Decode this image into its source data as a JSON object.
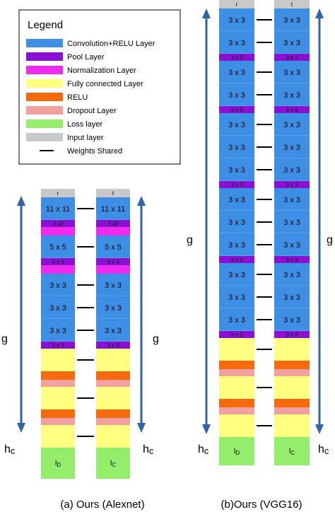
{
  "legend": {
    "title": "Legend",
    "items": [
      {
        "label": "Convolution+RELU Layer",
        "color": "#3d8fe6",
        "kind": "swatch"
      },
      {
        "label": "Pool Layer",
        "color": "#8a10d6",
        "kind": "swatch"
      },
      {
        "label": "Normalization Layer",
        "color": "#ef2bef",
        "kind": "swatch"
      },
      {
        "label": "Fully connected Layer",
        "color": "#ffff80",
        "kind": "swatch"
      },
      {
        "label": "RELU",
        "color": "#f46a0c",
        "kind": "swatch"
      },
      {
        "label": "Dropout Layer",
        "color": "#f2a0a0",
        "kind": "swatch"
      },
      {
        "label": "Loss layer",
        "color": "#94ee6c",
        "kind": "swatch"
      },
      {
        "label": "Input layer",
        "color": "#c8c8c8",
        "kind": "swatch"
      },
      {
        "label": "Weights Shared",
        "color": "#000000",
        "kind": "line"
      }
    ]
  },
  "colors": {
    "conv": "#3d8fe6",
    "pool": "#8a10d6",
    "norm": "#ef2bef",
    "fc": "#ffff80",
    "relu": "#f46a0c",
    "drop": "#f2a0a0",
    "loss": "#94ee6c",
    "input": "#c8c8c8",
    "arrow": "#3064a8",
    "seam": "#5d9fe8"
  },
  "alexnet": {
    "caption": "(a) Ours (Alexnet)",
    "left_header": "r",
    "right_header": "t",
    "left_loss": "lD",
    "right_loss": "lC",
    "g_label": "g",
    "hc_label": "hc",
    "layers": [
      {
        "type": "conv",
        "label": "11 x 11"
      },
      {
        "type": "pool",
        "label": "3 x3"
      },
      {
        "type": "norm",
        "label": ""
      },
      {
        "type": "conv",
        "label": "5 x 5"
      },
      {
        "type": "pool",
        "label": "3 x 3"
      },
      {
        "type": "norm",
        "label": ""
      },
      {
        "type": "conv",
        "label": "3 x 3"
      },
      {
        "type": "conv",
        "label": "3 x 3"
      },
      {
        "type": "conv",
        "label": "3 x 3"
      },
      {
        "type": "pool",
        "label": "3 x 3"
      },
      {
        "type": "fc",
        "label": ""
      },
      {
        "type": "relu",
        "label": ""
      },
      {
        "type": "drop",
        "label": ""
      },
      {
        "type": "fc",
        "label": ""
      },
      {
        "type": "relu",
        "label": ""
      },
      {
        "type": "drop",
        "label": ""
      },
      {
        "type": "fc",
        "label": ""
      },
      {
        "type": "loss",
        "label": ""
      }
    ]
  },
  "vgg16": {
    "caption": "(b)Ours (VGG16)",
    "left_header": "r",
    "right_header": "t",
    "left_loss": "lD",
    "right_loss": "lC",
    "g_label": "g",
    "hc_label": "hc",
    "layers": [
      {
        "type": "conv",
        "label": "3 x 3"
      },
      {
        "type": "conv",
        "label": "3 x 3"
      },
      {
        "type": "pool",
        "label": "3 x 3"
      },
      {
        "type": "conv",
        "label": "3 x 3"
      },
      {
        "type": "conv",
        "label": "3 x 3"
      },
      {
        "type": "pool",
        "label": "3 x 3"
      },
      {
        "type": "conv",
        "label": "3 x 3"
      },
      {
        "type": "conv",
        "label": "3 x 3"
      },
      {
        "type": "conv",
        "label": "3 x 3"
      },
      {
        "type": "pool",
        "label": "3 x 3"
      },
      {
        "type": "conv",
        "label": "3 x 3"
      },
      {
        "type": "conv",
        "label": "3 x 3"
      },
      {
        "type": "conv",
        "label": "3 x 3"
      },
      {
        "type": "pool",
        "label": "3 x 3"
      },
      {
        "type": "conv",
        "label": "3 x 3"
      },
      {
        "type": "conv",
        "label": "3 x 3"
      },
      {
        "type": "conv",
        "label": "3 x 3"
      },
      {
        "type": "pool",
        "label": "3 x 3"
      },
      {
        "type": "fc",
        "label": ""
      },
      {
        "type": "relu",
        "label": ""
      },
      {
        "type": "drop",
        "label": ""
      },
      {
        "type": "fc",
        "label": ""
      },
      {
        "type": "relu",
        "label": ""
      },
      {
        "type": "drop",
        "label": ""
      },
      {
        "type": "fc",
        "label": ""
      },
      {
        "type": "loss",
        "label": ""
      }
    ]
  }
}
